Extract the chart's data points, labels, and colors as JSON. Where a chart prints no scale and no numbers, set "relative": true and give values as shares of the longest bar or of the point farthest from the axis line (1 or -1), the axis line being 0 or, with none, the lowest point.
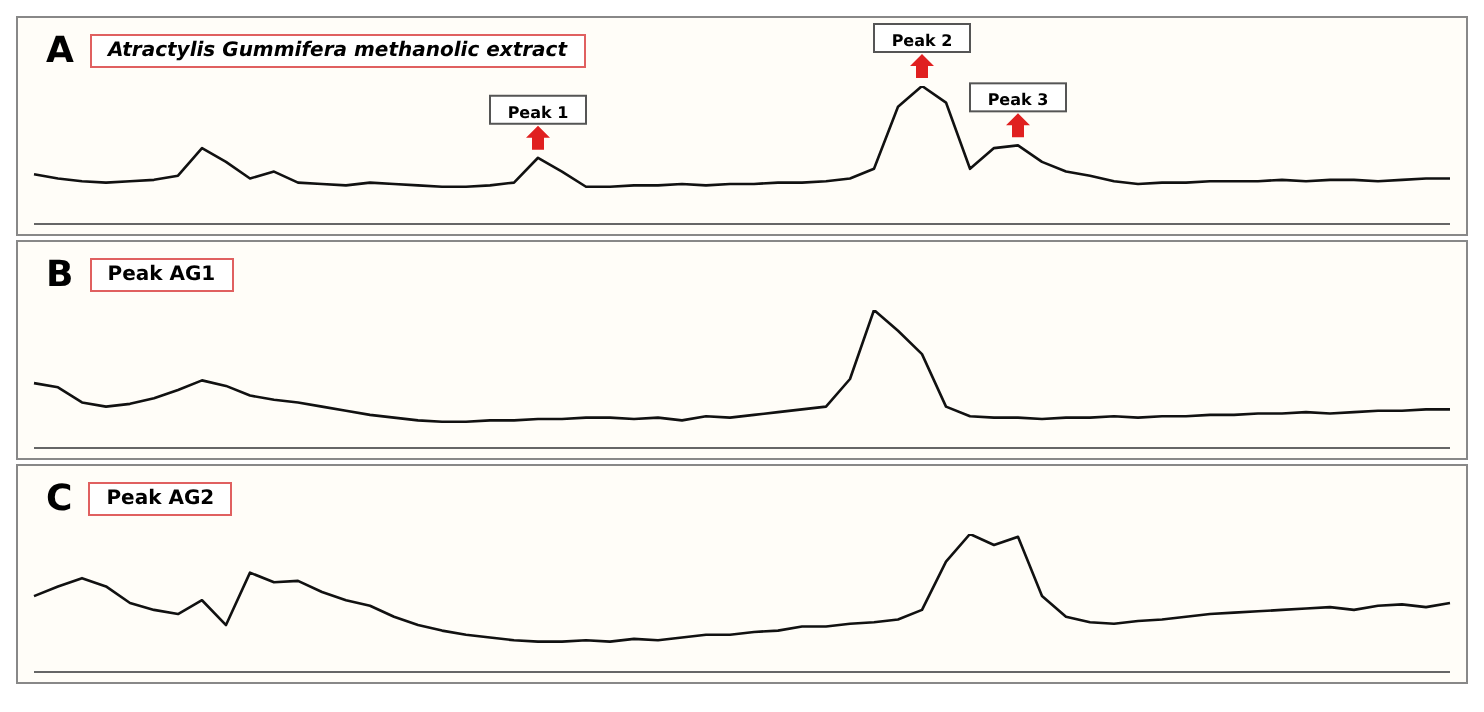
{
  "chart_data": [
    {
      "type": "line",
      "title": "A",
      "subtitle": "Atractylis Gummifera methanolic extract",
      "relative": true,
      "tick_labels": false,
      "grid": false,
      "legend": false,
      "marker": "none",
      "line_style": "solid",
      "categories": [
        null,
        null,
        null,
        null,
        null,
        null,
        null,
        null,
        null,
        null,
        null,
        null,
        null,
        null,
        null,
        null,
        null,
        null,
        null,
        null,
        null,
        null,
        null,
        null,
        null,
        null,
        null,
        null,
        null,
        null,
        null,
        null,
        null,
        null,
        null,
        null,
        null,
        null,
        null,
        null,
        null,
        null,
        null,
        null,
        null,
        null,
        null,
        null,
        null,
        null,
        null,
        null,
        null,
        null,
        null,
        null,
        null,
        null,
        null,
        null
      ],
      "series": [
        {
          "color": "#111111",
          "values": [
            0.36,
            0.33,
            0.31,
            0.3,
            0.31,
            0.32,
            0.35,
            0.55,
            0.45,
            0.33,
            0.38,
            0.3,
            0.29,
            0.28,
            0.3,
            0.29,
            0.28,
            0.27,
            0.27,
            0.28,
            0.3,
            0.48,
            0.38,
            0.27,
            0.27,
            0.28,
            0.28,
            0.29,
            0.28,
            0.29,
            0.29,
            0.3,
            0.3,
            0.31,
            0.33,
            0.4,
            0.85,
            1,
            0.88,
            0.4,
            0.55,
            0.57,
            0.45,
            0.38,
            0.35,
            0.31,
            0.29,
            0.3,
            0.3,
            0.31,
            0.31,
            0.31,
            0.32,
            0.31,
            0.32,
            0.32,
            0.31,
            0.32,
            0.33,
            0.33
          ]
        }
      ],
      "annotations": [
        {
          "text": "Peak 1",
          "y": 0.48
        },
        {
          "text": "Peak 2",
          "y": 1
        },
        {
          "text": "Peak 3",
          "y": 0.57
        }
      ]
    },
    {
      "type": "line",
      "title": "B",
      "subtitle": "Peak AG1",
      "relative": true,
      "tick_labels": false,
      "grid": false,
      "legend": false,
      "marker": "none",
      "line_style": "solid",
      "categories": [
        null,
        null,
        null,
        null,
        null,
        null,
        null,
        null,
        null,
        null,
        null,
        null,
        null,
        null,
        null,
        null,
        null,
        null,
        null,
        null,
        null,
        null,
        null,
        null,
        null,
        null,
        null,
        null,
        null,
        null,
        null,
        null,
        null,
        null,
        null,
        null,
        null,
        null,
        null,
        null,
        null,
        null,
        null,
        null,
        null,
        null,
        null,
        null,
        null,
        null,
        null,
        null,
        null,
        null,
        null,
        null,
        null,
        null,
        null,
        null
      ],
      "series": [
        {
          "color": "#111111",
          "values": [
            0.47,
            0.44,
            0.33,
            0.3,
            0.32,
            0.36,
            0.42,
            0.49,
            0.45,
            0.38,
            0.35,
            0.33,
            0.3,
            0.27,
            0.24,
            0.22,
            0.2,
            0.19,
            0.19,
            0.2,
            0.2,
            0.21,
            0.21,
            0.22,
            0.22,
            0.21,
            0.22,
            0.2,
            0.23,
            0.22,
            0.24,
            0.26,
            0.28,
            0.3,
            0.5,
            1,
            0.85,
            0.68,
            0.3,
            0.23,
            0.22,
            0.22,
            0.21,
            0.22,
            0.22,
            0.23,
            0.22,
            0.23,
            0.23,
            0.24,
            0.24,
            0.25,
            0.25,
            0.26,
            0.25,
            0.26,
            0.27,
            0.27,
            0.28,
            0.28
          ]
        }
      ]
    },
    {
      "type": "line",
      "title": "C",
      "subtitle": "Peak AG2",
      "relative": true,
      "tick_labels": false,
      "grid": false,
      "legend": false,
      "marker": "none",
      "line_style": "solid",
      "categories": [
        null,
        null,
        null,
        null,
        null,
        null,
        null,
        null,
        null,
        null,
        null,
        null,
        null,
        null,
        null,
        null,
        null,
        null,
        null,
        null,
        null,
        null,
        null,
        null,
        null,
        null,
        null,
        null,
        null,
        null,
        null,
        null,
        null,
        null,
        null,
        null,
        null,
        null,
        null,
        null,
        null,
        null,
        null,
        null,
        null,
        null,
        null,
        null,
        null,
        null,
        null,
        null,
        null,
        null,
        null,
        null,
        null,
        null,
        null,
        null
      ],
      "series": [
        {
          "color": "#111111",
          "values": [
            0.55,
            0.62,
            0.68,
            0.62,
            0.5,
            0.45,
            0.42,
            0.52,
            0.34,
            0.72,
            0.65,
            0.66,
            0.58,
            0.52,
            0.48,
            0.4,
            0.34,
            0.3,
            0.27,
            0.25,
            0.23,
            0.22,
            0.22,
            0.23,
            0.22,
            0.24,
            0.23,
            0.25,
            0.27,
            0.27,
            0.29,
            0.3,
            0.33,
            0.33,
            0.35,
            0.36,
            0.38,
            0.45,
            0.8,
            1,
            0.92,
            0.98,
            0.55,
            0.4,
            0.36,
            0.35,
            0.37,
            0.38,
            0.4,
            0.42,
            0.43,
            0.44,
            0.45,
            0.46,
            0.47,
            0.45,
            0.48,
            0.49,
            0.47,
            0.5
          ]
        }
      ]
    }
  ]
}
